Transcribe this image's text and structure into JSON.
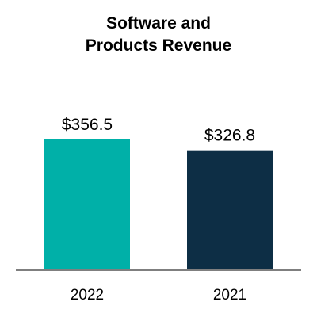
{
  "chart_data": {
    "type": "bar",
    "title_lines": [
      "Software and",
      "Products Revenue"
    ],
    "categories": [
      "2022",
      "2021"
    ],
    "values": [
      356.5,
      326.8
    ],
    "data_labels": [
      "$356.5",
      "$326.8"
    ],
    "colors": [
      "#00b0a8",
      "#0d2e45"
    ],
    "axis_color": "#7f7f7f",
    "xlabel": "",
    "ylabel": "",
    "grid": false
  }
}
